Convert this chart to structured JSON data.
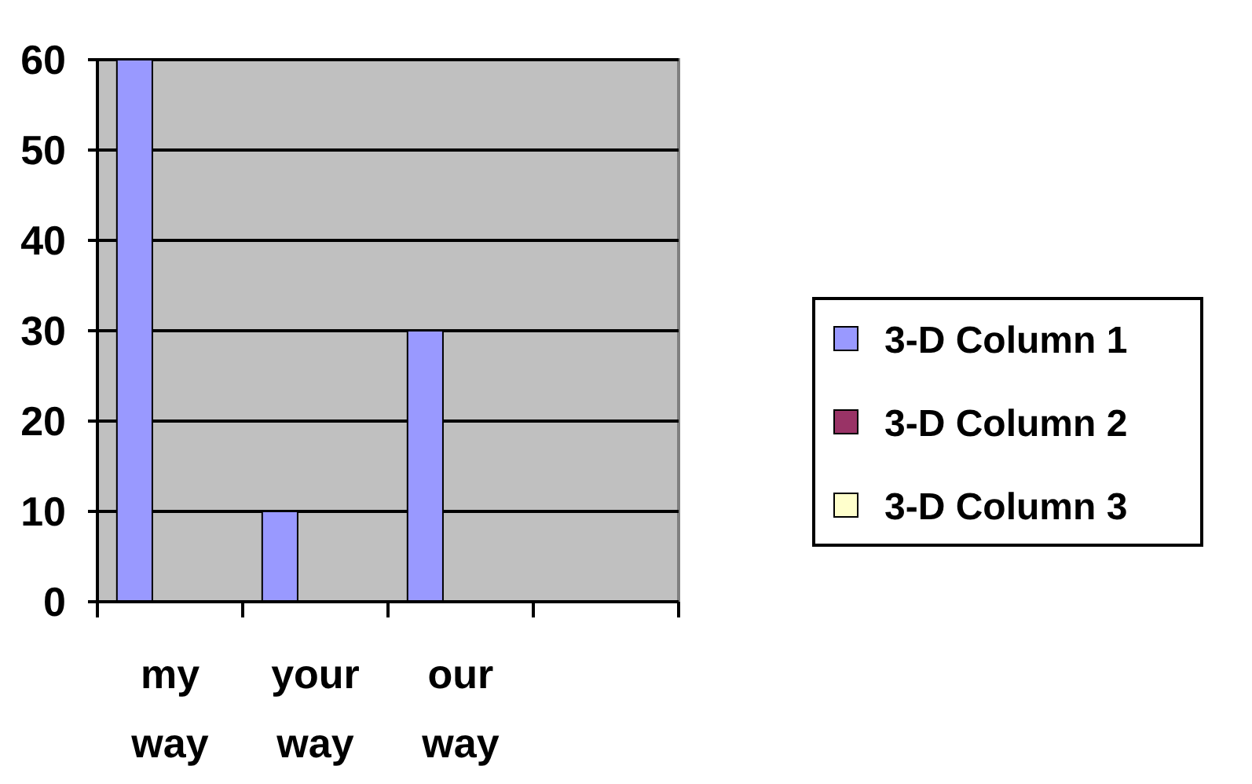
{
  "chart_data": {
    "type": "bar",
    "categories": [
      "my way",
      "your way",
      "our way",
      null
    ],
    "series": [
      {
        "name": "3-D Column 1",
        "color": "#9999ff",
        "values": [
          60,
          10,
          30,
          null
        ]
      },
      {
        "name": "3-D Column 2",
        "color": "#993366",
        "values": [
          null,
          null,
          null,
          null
        ]
      },
      {
        "name": "3-D Column 3",
        "color": "#ffffcc",
        "values": [
          null,
          null,
          null,
          null
        ]
      }
    ],
    "ylim": [
      0,
      60
    ],
    "yticks": [
      0,
      10,
      20,
      30,
      40,
      50,
      60
    ],
    "grid": "y",
    "legend": "right"
  }
}
